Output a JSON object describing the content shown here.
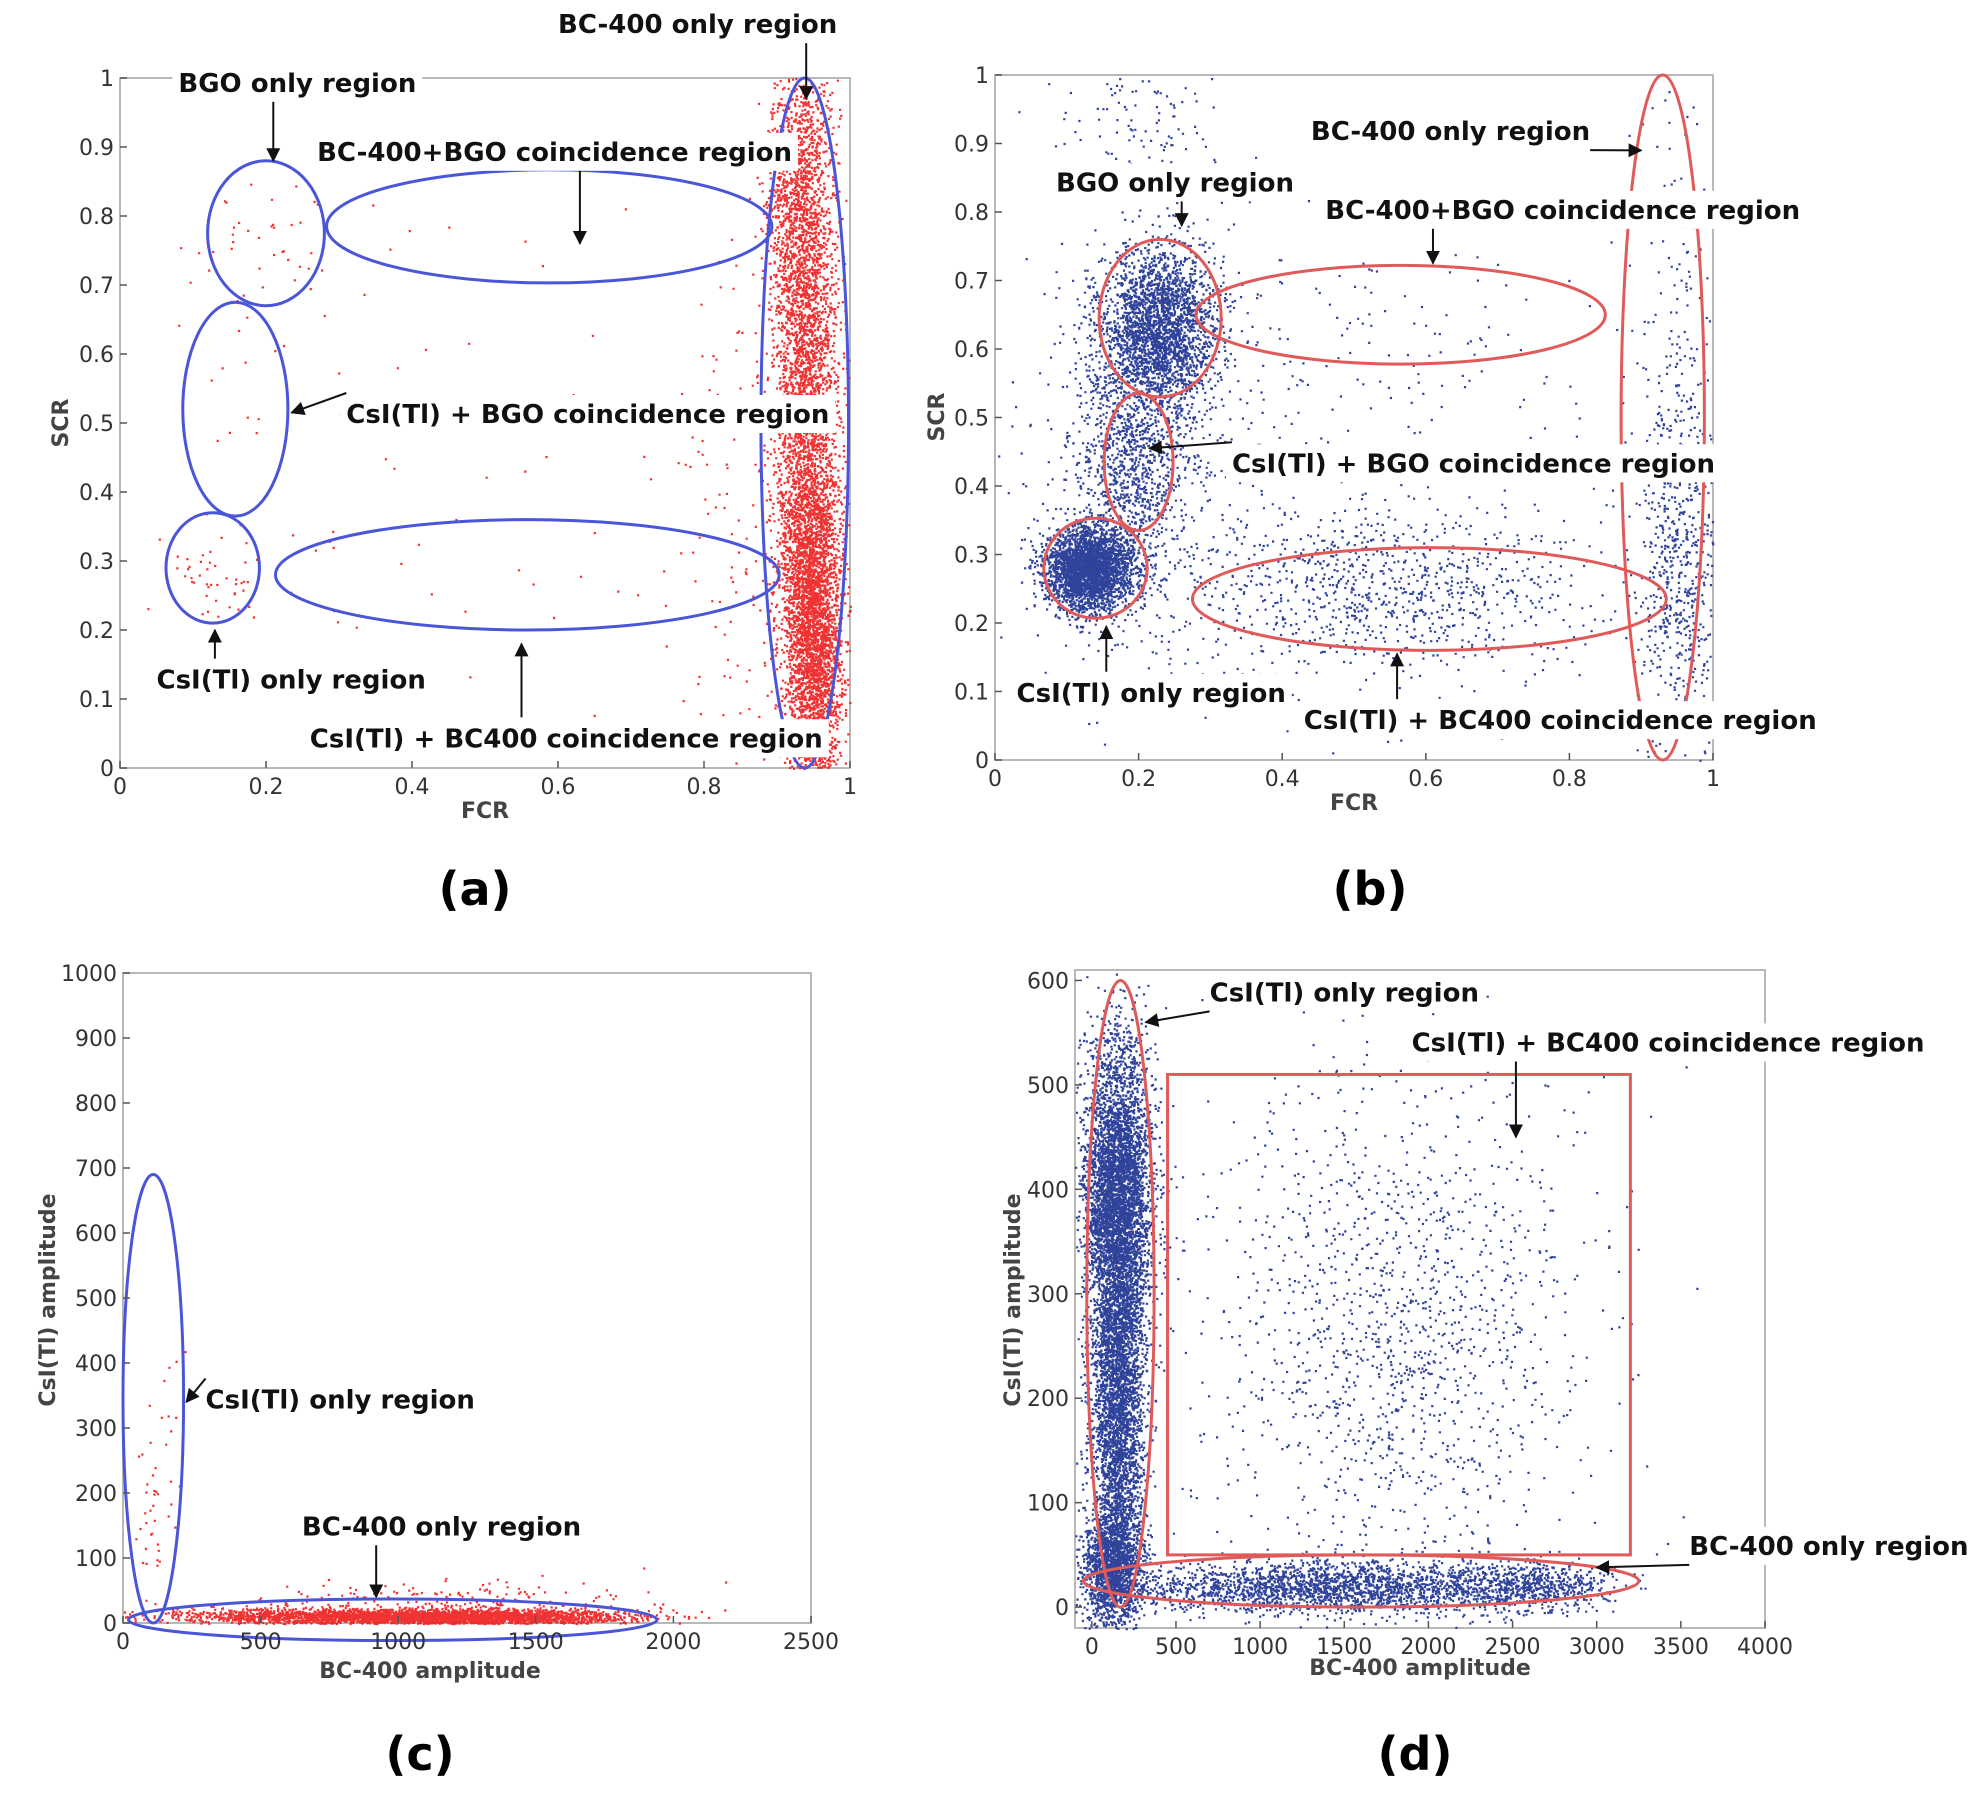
{
  "colors": {
    "red": "#ee1c1c",
    "blue_pts": "#1a2f8f",
    "blue_ring": "#4a55d8",
    "red_ring": "#e05a5a",
    "frame": "#b8b8b8"
  },
  "chart_data": [
    {
      "type": "scatter",
      "panel": "a",
      "panel_label": "(a)",
      "xlabel": "FCR",
      "ylabel": "SCR",
      "xlim": [
        0,
        1
      ],
      "ylim": [
        0,
        1
      ],
      "xticks": [
        "0",
        "0.2",
        "0.4",
        "0.6",
        "0.8",
        "1"
      ],
      "yticks": [
        "0",
        "0.1",
        "0.2",
        "0.3",
        "0.4",
        "0.5",
        "0.6",
        "0.7",
        "0.8",
        "0.9",
        "1"
      ],
      "point_color": "#ee1c1c",
      "ring_color": "#4a55d8",
      "clusters": [
        {
          "cx": 0.94,
          "cy": 0.5,
          "sx": 0.022,
          "sy": 0.28,
          "n": 4200
        },
        {
          "cx": 0.95,
          "cy": 0.2,
          "sx": 0.02,
          "sy": 0.12,
          "n": 2500
        },
        {
          "cx": 0.92,
          "cy": 0.82,
          "sx": 0.018,
          "sy": 0.1,
          "n": 700
        },
        {
          "cx": 0.85,
          "cy": 0.35,
          "sx": 0.06,
          "sy": 0.2,
          "n": 120
        },
        {
          "cx": 0.13,
          "cy": 0.28,
          "sx": 0.03,
          "sy": 0.03,
          "n": 40
        },
        {
          "cx": 0.2,
          "cy": 0.75,
          "sx": 0.05,
          "sy": 0.05,
          "n": 40
        },
        {
          "cx": 0.15,
          "cy": 0.52,
          "sx": 0.03,
          "sy": 0.12,
          "n": 12
        },
        {
          "cx": 0.5,
          "cy": 0.28,
          "sx": 0.18,
          "sy": 0.08,
          "n": 25
        },
        {
          "cx": 0.45,
          "cy": 0.55,
          "sx": 0.25,
          "sy": 0.15,
          "n": 35
        }
      ],
      "regions": [
        {
          "label": "BGO only region",
          "cx": 0.2,
          "cy": 0.775,
          "rx": 0.08,
          "ry": 0.105
        },
        {
          "label": "BC-400+BGO coincidence region",
          "cx": 0.588,
          "cy": 0.785,
          "rx": 0.305,
          "ry": 0.082
        },
        {
          "label": "BC-400 only region",
          "cx": 0.938,
          "cy": 0.5,
          "rx": 0.06,
          "ry": 0.5
        },
        {
          "label": "CsI(Tl) + BGO coincidence region",
          "cx": 0.158,
          "cy": 0.52,
          "rx": 0.072,
          "ry": 0.155
        },
        {
          "label": "CsI(Tl) only region",
          "cx": 0.127,
          "cy": 0.29,
          "rx": 0.064,
          "ry": 0.08
        },
        {
          "label": "CsI(Tl) + BC400 coincidence region",
          "cx": 0.558,
          "cy": 0.28,
          "rx": 0.345,
          "ry": 0.08
        }
      ],
      "annotations": [
        {
          "text": "BC-400 only region",
          "tx": 0.6,
          "ty": 1.065,
          "ax": 0.94,
          "ay": 0.97
        },
        {
          "text": "BGO only region",
          "tx": 0.08,
          "ty": 0.98,
          "ax": 0.21,
          "ay": 0.88
        },
        {
          "text": "BC-400+BGO coincidence region",
          "tx": 0.27,
          "ty": 0.88,
          "ax": 0.63,
          "ay": 0.76
        },
        {
          "text": "CsI(Tl) + BGO coincidence region",
          "tx": 0.31,
          "ty": 0.5,
          "ax": 0.235,
          "ay": 0.515
        },
        {
          "text": "CsI(Tl) only region",
          "tx": 0.05,
          "ty": 0.115,
          "ax": 0.13,
          "ay": 0.2
        },
        {
          "text": "CsI(Tl) + BC400 coincidence region",
          "tx": 0.26,
          "ty": 0.03,
          "ax": 0.55,
          "ay": 0.18
        }
      ]
    },
    {
      "type": "scatter",
      "panel": "b",
      "panel_label": "(b)",
      "xlabel": "FCR",
      "ylabel": "SCR",
      "xlim": [
        0,
        1
      ],
      "ylim": [
        0,
        1
      ],
      "xticks": [
        "0",
        "0.2",
        "0.4",
        "0.6",
        "0.8",
        "1"
      ],
      "yticks": [
        "0",
        "0.1",
        "0.2",
        "0.3",
        "0.4",
        "0.5",
        "0.6",
        "0.7",
        "0.8",
        "0.9",
        "1"
      ],
      "point_color": "#1a2f8f",
      "ring_color": "#e05a5a",
      "clusters": [
        {
          "cx": 0.13,
          "cy": 0.28,
          "sx": 0.03,
          "sy": 0.03,
          "n": 3000
        },
        {
          "cx": 0.23,
          "cy": 0.63,
          "sx": 0.04,
          "sy": 0.06,
          "n": 2500
        },
        {
          "cx": 0.19,
          "cy": 0.45,
          "sx": 0.04,
          "sy": 0.1,
          "n": 1300
        },
        {
          "cx": 0.55,
          "cy": 0.25,
          "sx": 0.15,
          "sy": 0.06,
          "n": 900
        },
        {
          "cx": 0.95,
          "cy": 0.28,
          "sx": 0.03,
          "sy": 0.13,
          "n": 600
        },
        {
          "cx": 0.95,
          "cy": 0.65,
          "sx": 0.03,
          "sy": 0.2,
          "n": 150
        },
        {
          "cx": 0.6,
          "cy": 0.65,
          "sx": 0.2,
          "sy": 0.07,
          "n": 80
        },
        {
          "cx": 0.2,
          "cy": 0.93,
          "sx": 0.06,
          "sy": 0.05,
          "n": 120
        },
        {
          "cx": 0.3,
          "cy": 0.4,
          "sx": 0.2,
          "sy": 0.2,
          "n": 400
        }
      ],
      "regions": [
        {
          "label": "BGO only region",
          "cx": 0.23,
          "cy": 0.645,
          "rx": 0.085,
          "ry": 0.115
        },
        {
          "label": "BC-400+BGO coincidence region",
          "cx": 0.565,
          "cy": 0.65,
          "rx": 0.285,
          "ry": 0.072
        },
        {
          "label": "BC-400 only region",
          "cx": 0.93,
          "cy": 0.5,
          "rx": 0.058,
          "ry": 0.5
        },
        {
          "label": "CsI(Tl) + BGO coincidence region",
          "cx": 0.2,
          "cy": 0.435,
          "rx": 0.048,
          "ry": 0.1
        },
        {
          "label": "CsI(Tl) only region",
          "cx": 0.14,
          "cy": 0.28,
          "rx": 0.072,
          "ry": 0.073
        },
        {
          "label": "CsI(Tl) + BC400 coincidence region",
          "cx": 0.605,
          "cy": 0.235,
          "rx": 0.33,
          "ry": 0.075
        }
      ],
      "annotations": [
        {
          "text": "BC-400 only region",
          "tx": 0.44,
          "ty": 0.905,
          "ax": 0.9,
          "ay": 0.89
        },
        {
          "text": "BGO only region",
          "tx": 0.085,
          "ty": 0.83,
          "ax": 0.26,
          "ay": 0.78
        },
        {
          "text": "BC-400+BGO coincidence region",
          "tx": 0.46,
          "ty": 0.79,
          "ax": 0.61,
          "ay": 0.725
        },
        {
          "text": "CsI(Tl) + BGO coincidence region",
          "tx": 0.33,
          "ty": 0.42,
          "ax": 0.215,
          "ay": 0.455
        },
        {
          "text": "CsI(Tl) only region",
          "tx": 0.03,
          "ty": 0.085,
          "ax": 0.155,
          "ay": 0.195
        },
        {
          "text": "CsI(Tl) + BC400 coincidence region",
          "tx": 0.43,
          "ty": 0.045,
          "ax": 0.56,
          "ay": 0.155
        }
      ]
    },
    {
      "type": "scatter",
      "panel": "c",
      "panel_label": "(c)",
      "xlabel": "BC-400 amplitude",
      "ylabel": "CsI(Tl) amplitude",
      "xlim": [
        0,
        2500
      ],
      "ylim": [
        0,
        1000
      ],
      "xticks": [
        "0",
        "500",
        "1000",
        "1500",
        "2000",
        "2500"
      ],
      "yticks": [
        "0",
        "100",
        "200",
        "300",
        "400",
        "500",
        "600",
        "700",
        "800",
        "900",
        "1000"
      ],
      "point_color": "#ee1c1c",
      "ring_color": "#4a55d8",
      "clusters": [
        {
          "cx": 1200,
          "cy": 10,
          "sx": 300,
          "sy": 6,
          "n": 2800
        },
        {
          "cx": 600,
          "cy": 12,
          "sx": 250,
          "sy": 6,
          "n": 800
        },
        {
          "cx": 1200,
          "cy": 35,
          "sx": 350,
          "sy": 15,
          "n": 200
        },
        {
          "cx": 100,
          "cy": 150,
          "sx": 40,
          "sy": 100,
          "n": 40
        },
        {
          "cx": 150,
          "cy": 300,
          "sx": 50,
          "sy": 80,
          "n": 12
        }
      ],
      "regions": [
        {
          "label": "CsI(Tl) only region",
          "cx": 110,
          "cy": 345,
          "rx": 110,
          "ry": 345
        },
        {
          "label": "BC-400 only region",
          "cx": 980,
          "cy": 5,
          "rx": 960,
          "ry": 32
        }
      ],
      "annotations": [
        {
          "text": "CsI(Tl) only region",
          "tx": 300,
          "ty": 330,
          "ax": 230,
          "ay": 340
        },
        {
          "text": "BC-400 only region",
          "tx": 650,
          "ty": 135,
          "ax": 920,
          "ay": 40
        }
      ]
    },
    {
      "type": "scatter",
      "panel": "d",
      "panel_label": "(d)",
      "xlabel": "BC-400 amplitude",
      "ylabel": "CsI(Tl) amplitude",
      "xlim": [
        -100,
        4000
      ],
      "ylim": [
        -20,
        610
      ],
      "xticks": [
        "0",
        "500",
        "1000",
        "1500",
        "2000",
        "2500",
        "3000",
        "3500",
        "4000"
      ],
      "yticks": [
        "0",
        "100",
        "200",
        "300",
        "400",
        "500",
        "600"
      ],
      "point_color": "#1a2f8f",
      "ring_color": "#e05a5a",
      "clusters": [
        {
          "cx": 150,
          "cy": 400,
          "sx": 100,
          "sy": 70,
          "n": 4200
        },
        {
          "cx": 150,
          "cy": 200,
          "sx": 80,
          "sy": 100,
          "n": 3800
        },
        {
          "cx": 120,
          "cy": 40,
          "sx": 90,
          "sy": 25,
          "n": 1500
        },
        {
          "cx": 1400,
          "cy": 20,
          "sx": 600,
          "sy": 12,
          "n": 2200
        },
        {
          "cx": 2600,
          "cy": 20,
          "sx": 250,
          "sy": 12,
          "n": 600
        },
        {
          "cx": 1800,
          "cy": 260,
          "sx": 550,
          "sy": 120,
          "n": 1400
        }
      ],
      "regions": [
        {
          "label": "CsI(Tl) only region",
          "cx": 170,
          "cy": 300,
          "rx": 200,
          "ry": 300
        },
        {
          "label": "BC-400 only region",
          "cx": 1600,
          "cy": 25,
          "rx": 1650,
          "ry": 25
        }
      ],
      "boxes": [
        {
          "label": "CsI(Tl) + BC400 coincidence region",
          "x0": 450,
          "x1": 3200,
          "y0": 50,
          "y1": 510
        }
      ],
      "annotations": [
        {
          "text": "CsI(Tl) only region",
          "tx": 700,
          "ty": 580,
          "ax": 320,
          "ay": 560
        },
        {
          "text": "CsI(Tl) + BC400 coincidence region",
          "tx": 1900,
          "ty": 532,
          "ax": 2520,
          "ay": 450
        },
        {
          "text": "BC-400 only region",
          "tx": 3550,
          "ty": 50,
          "ax": 3000,
          "ay": 38
        }
      ]
    }
  ]
}
